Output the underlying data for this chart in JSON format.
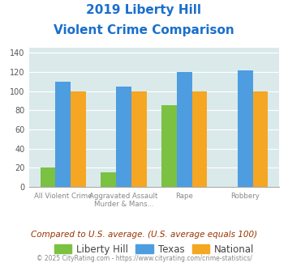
{
  "title_line1": "2019 Liberty Hill",
  "title_line2": "Violent Crime Comparison",
  "cat_labels_top": [
    "",
    "Aggravated Assault",
    "",
    ""
  ],
  "cat_labels_bot": [
    "All Violent Crime",
    "Murder & Mans...",
    "Rape",
    "Robbery"
  ],
  "liberty_hill": [
    20,
    15,
    85,
    0
  ],
  "texas": [
    110,
    105,
    120,
    122
  ],
  "national": [
    100,
    100,
    100,
    100
  ],
  "liberty_hill_color": "#7bc142",
  "texas_color": "#4d9de0",
  "national_color": "#f5a623",
  "bg_color": "#daeaea",
  "ylim": [
    0,
    145
  ],
  "yticks": [
    0,
    20,
    40,
    60,
    80,
    100,
    120,
    140
  ],
  "subtitle_text": "Compared to U.S. average. (U.S. average equals 100)",
  "footer_text": "© 2025 CityRating.com - https://www.cityrating.com/crime-statistics/",
  "title_color": "#1a6fcc",
  "subtitle_color": "#993300",
  "footer_color": "#888888",
  "legend_labels": [
    "Liberty Hill",
    "Texas",
    "National"
  ],
  "bar_width": 0.25
}
